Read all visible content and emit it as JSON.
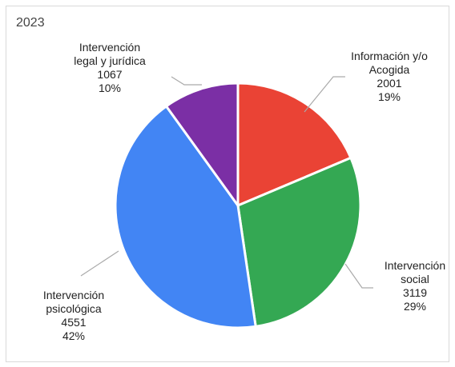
{
  "chart_data": {
    "type": "pie",
    "title": "2023",
    "slices": [
      {
        "label_lines": [
          "Información y/o",
          "Acogida"
        ],
        "value": 2001,
        "percent": "19%",
        "color": "#ea4335"
      },
      {
        "label_lines": [
          "Intervención",
          "social"
        ],
        "value": 3119,
        "percent": "29%",
        "color": "#34a853"
      },
      {
        "label_lines": [
          "Intervención",
          "psicológica"
        ],
        "value": 4551,
        "percent": "42%",
        "color": "#4285f4"
      },
      {
        "label_lines": [
          "Intervención",
          "legal y jurídica"
        ],
        "value": 1067,
        "percent": "10%",
        "color": "#7b2fa5"
      }
    ]
  }
}
